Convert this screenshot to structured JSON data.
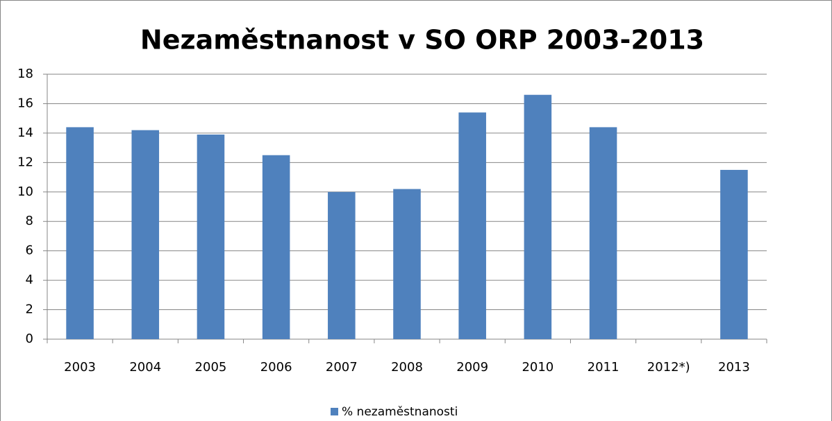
{
  "chart_data": {
    "type": "bar",
    "title": "Nezaměstnanost v SO ORP 2003-2013",
    "categories": [
      "2003",
      "2004",
      "2005",
      "2006",
      "2007",
      "2008",
      "2009",
      "2010",
      "2011",
      "2012*)",
      "2013"
    ],
    "series": [
      {
        "name": "% nezaměstnanosti",
        "color": "#4f81bd",
        "values": [
          14.4,
          14.2,
          13.9,
          12.5,
          10.0,
          10.2,
          15.4,
          16.6,
          14.4,
          null,
          11.5
        ]
      }
    ],
    "ylim": [
      0,
      18
    ],
    "yticks": [
      0,
      2,
      4,
      6,
      8,
      10,
      12,
      14,
      16,
      18
    ],
    "grid": true,
    "legend": "bottom"
  }
}
